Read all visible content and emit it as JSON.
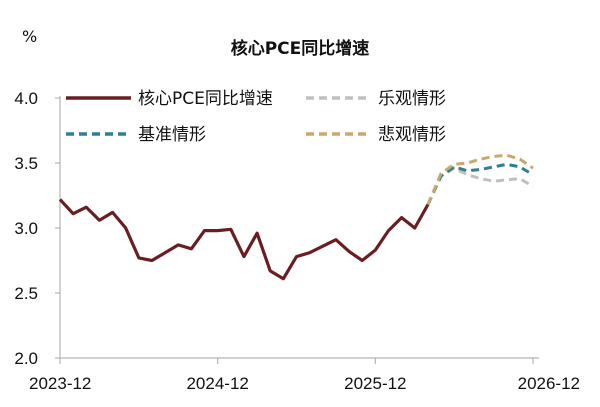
{
  "chart_data": {
    "type": "line",
    "title": "核心PCE同比增速",
    "ylabel": "%",
    "xlabel": "",
    "ylim": [
      2.0,
      4.0
    ],
    "yticks": [
      "2.0",
      "2.5",
      "3.0",
      "3.5",
      "4.0"
    ],
    "xticks": [
      "2023-12",
      "2024-12",
      "2025-12",
      "2026-12"
    ],
    "legend_position": "top",
    "grid": false,
    "series": [
      {
        "name": "核心PCE同比增速",
        "color": "#6b1e22",
        "style": "solid",
        "points": [
          [
            "2023-12",
            3.22
          ],
          [
            "2024-01",
            3.11
          ],
          [
            "2024-02",
            3.16
          ],
          [
            "2024-03",
            3.06
          ],
          [
            "2024-04",
            3.12
          ],
          [
            "2024-05",
            3.0
          ],
          [
            "2024-06",
            2.77
          ],
          [
            "2024-07",
            2.75
          ],
          [
            "2024-08",
            2.81
          ],
          [
            "2024-09",
            2.87
          ],
          [
            "2024-10",
            2.84
          ],
          [
            "2024-11",
            2.98
          ],
          [
            "2024-12",
            2.98
          ],
          [
            "2025-01",
            2.99
          ],
          [
            "2025-02",
            2.78
          ],
          [
            "2025-03",
            2.96
          ],
          [
            "2025-04",
            2.67
          ],
          [
            "2025-05",
            2.61
          ],
          [
            "2025-06",
            2.78
          ],
          [
            "2025-07",
            2.81
          ],
          [
            "2025-08",
            2.86
          ],
          [
            "2025-09",
            2.91
          ],
          [
            "2025-10",
            2.82
          ],
          [
            "2025-11",
            2.75
          ],
          [
            "2025-12",
            2.83
          ],
          [
            "2026-01",
            2.98
          ],
          [
            "2026-02",
            3.08
          ],
          [
            "2026-03",
            3.0
          ],
          [
            "2026-04",
            3.18
          ]
        ]
      },
      {
        "name": "乐观情形",
        "color": "#c0c0bb",
        "style": "dashed",
        "points": [
          [
            "2026-04",
            3.18
          ],
          [
            "2026-05",
            3.4
          ],
          [
            "2026-06",
            3.46
          ],
          [
            "2026-07",
            3.41
          ],
          [
            "2026-08",
            3.38
          ],
          [
            "2026-09",
            3.36
          ],
          [
            "2026-10",
            3.37
          ],
          [
            "2026-11",
            3.38
          ],
          [
            "2026-12",
            3.32
          ]
        ]
      },
      {
        "name": "基准情形",
        "color": "#2e7f93",
        "style": "dashed",
        "points": [
          [
            "2026-04",
            3.18
          ],
          [
            "2026-05",
            3.4
          ],
          [
            "2026-06",
            3.47
          ],
          [
            "2026-07",
            3.44
          ],
          [
            "2026-08",
            3.45
          ],
          [
            "2026-09",
            3.47
          ],
          [
            "2026-10",
            3.49
          ],
          [
            "2026-11",
            3.47
          ],
          [
            "2026-12",
            3.41
          ]
        ]
      },
      {
        "name": "悲观情形",
        "color": "#c8a96b",
        "style": "dashed",
        "points": [
          [
            "2026-04",
            3.18
          ],
          [
            "2026-05",
            3.42
          ],
          [
            "2026-06",
            3.49
          ],
          [
            "2026-07",
            3.5
          ],
          [
            "2026-08",
            3.53
          ],
          [
            "2026-09",
            3.55
          ],
          [
            "2026-10",
            3.56
          ],
          [
            "2026-11",
            3.53
          ],
          [
            "2026-12",
            3.46
          ]
        ]
      }
    ],
    "legend_order": [
      0,
      1,
      2,
      3
    ]
  }
}
